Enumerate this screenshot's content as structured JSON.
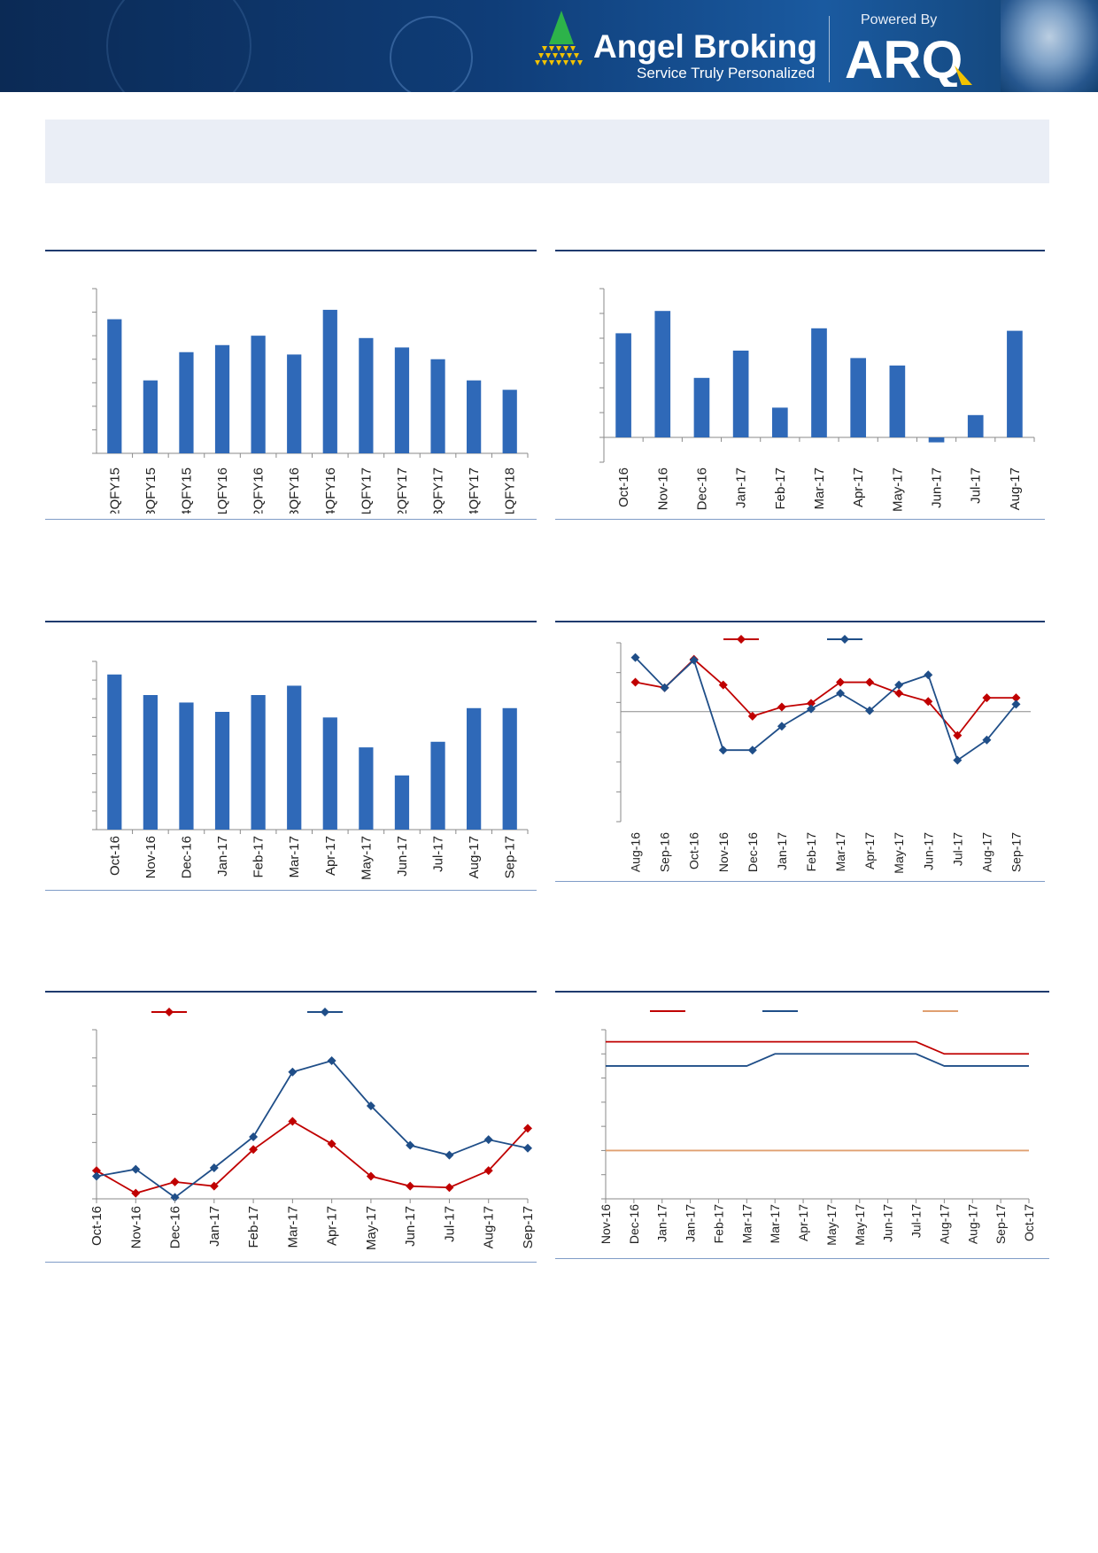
{
  "header": {
    "brand_name": "Angel Broking",
    "brand_tagline": "Service Truly Personalized",
    "powered_by": "Powered By",
    "arq_logo": "ARQ",
    "colors": {
      "banner": "#0f3d78",
      "bar": "#2f69b8",
      "red": "#c00000",
      "blue": "#1f4e88",
      "orange": "#e0a070"
    }
  },
  "chart_data": [
    {
      "type": "bar",
      "categories": [
        "2QFY15",
        "3QFY15",
        "4QFY15",
        "1QFY16",
        "2QFY16",
        "3QFY16",
        "4QFY16",
        "1QFY17",
        "2QFY17",
        "3QFY17",
        "4QFY17",
        "1QFY18"
      ],
      "values": [
        5.7,
        3.1,
        4.3,
        4.6,
        5.0,
        4.2,
        6.1,
        4.9,
        4.5,
        4.0,
        3.1,
        2.7
      ],
      "ylim": [
        0,
        7
      ],
      "title": "",
      "xlabel": "",
      "ylabel": ""
    },
    {
      "type": "bar",
      "categories": [
        "Oct-16",
        "Nov-16",
        "Dec-16",
        "Jan-17",
        "Feb-17",
        "Mar-17",
        "Apr-17",
        "May-17",
        "Jun-17",
        "Jul-17",
        "Aug-17"
      ],
      "values": [
        4.2,
        5.1,
        2.4,
        3.5,
        1.2,
        4.4,
        3.2,
        2.9,
        -0.2,
        0.9,
        4.3
      ],
      "ylim": [
        -1,
        6
      ],
      "title": "",
      "xlabel": "",
      "ylabel": ""
    },
    {
      "type": "bar",
      "categories": [
        "Oct-16",
        "Nov-16",
        "Dec-16",
        "Jan-17",
        "Feb-17",
        "Mar-17",
        "Apr-17",
        "May-17",
        "Jun-17",
        "Jul-17",
        "Aug-17",
        "Sep-17"
      ],
      "values": [
        8.3,
        7.2,
        6.8,
        6.3,
        7.2,
        7.7,
        6.0,
        4.4,
        2.9,
        4.7,
        6.5,
        6.5
      ],
      "ylim": [
        0,
        9
      ],
      "title": "",
      "xlabel": "",
      "ylabel": ""
    },
    {
      "type": "line",
      "x": [
        "Aug-16",
        "Sep-16",
        "Oct-16",
        "Nov-16",
        "Dec-16",
        "Jan-17",
        "Feb-17",
        "Mar-17",
        "Apr-17",
        "May-17",
        "Jun-17",
        "Jul-17",
        "Aug-17",
        "Sep-17"
      ],
      "series": [
        {
          "color": "#c00000",
          "values": [
            3.2,
            2.6,
            5.7,
            2.9,
            -0.5,
            0.5,
            0.9,
            3.2,
            3.2,
            2.0,
            1.1,
            -2.6,
            1.5,
            1.5
          ]
        },
        {
          "color": "#1f4e88",
          "values": [
            5.9,
            2.6,
            5.6,
            -4.2,
            -4.2,
            -1.6,
            0.3,
            2.0,
            0.1,
            2.9,
            4.0,
            -5.3,
            -3.1,
            0.8
          ]
        }
      ],
      "ylim": [
        -12,
        7.5
      ],
      "title": "",
      "xlabel": "",
      "ylabel": ""
    },
    {
      "type": "line",
      "x": [
        "Oct-16",
        "Nov-16",
        "Dec-16",
        "Jan-17",
        "Feb-17",
        "Mar-17",
        "Apr-17",
        "May-17",
        "Jun-17",
        "Jul-17",
        "Aug-17",
        "Sep-17"
      ],
      "series": [
        {
          "color": "#c00000",
          "values": [
            1.0,
            0.2,
            0.6,
            0.45,
            1.75,
            2.75,
            1.95,
            0.8,
            0.45,
            0.4,
            1.0,
            2.5
          ]
        },
        {
          "color": "#1f4e88",
          "values": [
            0.8,
            1.05,
            0.05,
            1.1,
            2.2,
            4.5,
            4.9,
            3.3,
            1.9,
            1.55,
            2.1,
            1.8
          ]
        }
      ],
      "ylim": [
        0,
        6
      ],
      "title": "",
      "xlabel": "",
      "ylabel": ""
    },
    {
      "type": "line",
      "x": [
        "Nov-16",
        "Dec-16",
        "Jan-17",
        "Jan-17",
        "Feb-17",
        "Mar-17",
        "Mar-17",
        "Apr-17",
        "May-17",
        "May-17",
        "Jun-17",
        "Jul-17",
        "Aug-17",
        "Aug-17",
        "Sep-17",
        "Oct-17"
      ],
      "series": [
        {
          "color": "#c00000",
          "values": [
            6.25,
            6.25,
            6.25,
            6.25,
            6.25,
            6.25,
            6.25,
            6.25,
            6.25,
            6.25,
            6.25,
            6.25,
            6.0,
            6.0,
            6.0,
            6.0
          ]
        },
        {
          "color": "#1f4e88",
          "values": [
            5.75,
            5.75,
            5.75,
            5.75,
            5.75,
            5.75,
            6.0,
            6.0,
            6.0,
            6.0,
            6.0,
            6.0,
            5.75,
            5.75,
            5.75,
            5.75
          ]
        },
        {
          "color": "#e0a070",
          "values": [
            4.0,
            4.0,
            4.0,
            4.0,
            4.0,
            4.0,
            4.0,
            4.0,
            4.0,
            4.0,
            4.0,
            4.0,
            4.0,
            4.0,
            4.0,
            4.0
          ]
        }
      ],
      "ylim": [
        3,
        6.5
      ],
      "title": "",
      "xlabel": "",
      "ylabel": ""
    }
  ]
}
